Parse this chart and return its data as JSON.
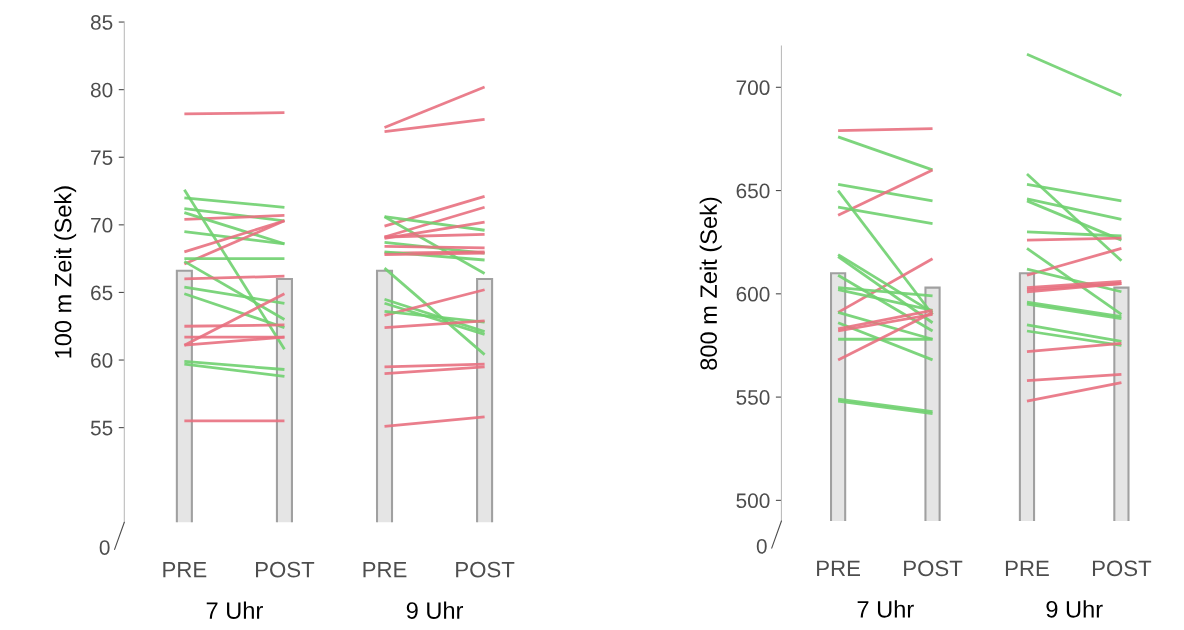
{
  "chart_data": [
    {
      "type": "bar",
      "categories": [
        "PRE",
        "POST",
        "PRE",
        "POST"
      ],
      "ylabel": "100 m Zeit (Sek)",
      "ylim": [
        48,
        85
      ],
      "yticks": [
        55,
        60,
        65,
        70,
        75,
        80,
        85
      ],
      "annotations": [
        "7 Uhr",
        "9 Uhr",
        "0"
      ],
      "grid": false,
      "series": [
        {
          "color": "#e5e5e5",
          "values": [
            66.6,
            66.0,
            66.6,
            66.0
          ]
        },
        {
          "type": "line",
          "color": "#e8707f",
          "values": [
            78.2,
            78.3,
            null,
            null
          ]
        },
        {
          "type": "line",
          "color": "#6fd06f",
          "values": [
            72.6,
            60.8,
            null,
            null
          ]
        },
        {
          "type": "line",
          "color": "#6fd06f",
          "values": [
            72.0,
            71.3,
            null,
            null
          ]
        },
        {
          "type": "line",
          "color": "#6fd06f",
          "values": [
            71.2,
            70.3,
            null,
            null
          ]
        },
        {
          "type": "line",
          "color": "#e8707f",
          "values": [
            70.4,
            70.7,
            null,
            null
          ]
        },
        {
          "type": "line",
          "color": "#6fd06f",
          "values": [
            70.9,
            68.6,
            null,
            null
          ]
        },
        {
          "type": "line",
          "color": "#6fd06f",
          "values": [
            69.5,
            68.6,
            null,
            null
          ]
        },
        {
          "type": "line",
          "color": "#e8707f",
          "values": [
            68.0,
            70.3,
            null,
            null
          ]
        },
        {
          "type": "line",
          "color": "#e8707f",
          "values": [
            67.1,
            70.3,
            null,
            null
          ]
        },
        {
          "type": "line",
          "color": "#6fd06f",
          "values": [
            67.5,
            67.5,
            null,
            null
          ]
        },
        {
          "type": "line",
          "color": "#6fd06f",
          "values": [
            67.3,
            63.0,
            null,
            null
          ]
        },
        {
          "type": "line",
          "color": "#e8707f",
          "values": [
            66.0,
            66.2,
            null,
            null
          ]
        },
        {
          "type": "line",
          "color": "#6fd06f",
          "values": [
            65.4,
            64.2,
            null,
            null
          ]
        },
        {
          "type": "line",
          "color": "#6fd06f",
          "values": [
            64.9,
            62.4,
            null,
            null
          ]
        },
        {
          "type": "line",
          "color": "#e8707f",
          "values": [
            62.5,
            62.6,
            null,
            null
          ]
        },
        {
          "type": "line",
          "color": "#e8707f",
          "values": [
            61.1,
            64.9,
            null,
            null
          ]
        },
        {
          "type": "line",
          "color": "#e8707f",
          "values": [
            61.7,
            61.7,
            null,
            null
          ]
        },
        {
          "type": "line",
          "color": "#e8707f",
          "values": [
            61.1,
            61.7,
            null,
            null
          ]
        },
        {
          "type": "line",
          "color": "#6fd06f",
          "values": [
            59.9,
            59.3,
            null,
            null
          ]
        },
        {
          "type": "line",
          "color": "#6fd06f",
          "values": [
            59.7,
            58.8,
            null,
            null
          ]
        },
        {
          "type": "line",
          "color": "#e8707f",
          "values": [
            55.5,
            55.5,
            null,
            null
          ]
        },
        {
          "type": "line",
          "color": "#e8707f",
          "values": [
            null,
            null,
            77.2,
            80.2
          ]
        },
        {
          "type": "line",
          "color": "#e8707f",
          "values": [
            null,
            null,
            76.9,
            77.8
          ]
        },
        {
          "type": "line",
          "color": "#e8707f",
          "values": [
            null,
            null,
            69.9,
            72.1
          ]
        },
        {
          "type": "line",
          "color": "#e8707f",
          "values": [
            null,
            null,
            69.1,
            71.3
          ]
        },
        {
          "type": "line",
          "color": "#6fd06f",
          "values": [
            null,
            null,
            70.6,
            69.6
          ]
        },
        {
          "type": "line",
          "color": "#6fd06f",
          "values": [
            null,
            null,
            70.6,
            66.4
          ]
        },
        {
          "type": "line",
          "color": "#e8707f",
          "values": [
            null,
            null,
            69.0,
            70.2
          ]
        },
        {
          "type": "line",
          "color": "#e8707f",
          "values": [
            null,
            null,
            69.1,
            69.3
          ]
        },
        {
          "type": "line",
          "color": "#6fd06f",
          "values": [
            null,
            null,
            68.7,
            67.9
          ]
        },
        {
          "type": "line",
          "color": "#e8707f",
          "values": [
            null,
            null,
            68.4,
            68.3
          ]
        },
        {
          "type": "line",
          "color": "#e8707f",
          "values": [
            null,
            null,
            67.9,
            68.0
          ]
        },
        {
          "type": "line",
          "color": "#6fd06f",
          "values": [
            null,
            null,
            68.0,
            67.4
          ]
        },
        {
          "type": "line",
          "color": "#e8707f",
          "values": [
            null,
            null,
            67.8,
            67.9
          ]
        },
        {
          "type": "line",
          "color": "#6fd06f",
          "values": [
            null,
            null,
            66.8,
            60.4
          ]
        },
        {
          "type": "line",
          "color": "#6fd06f",
          "values": [
            null,
            null,
            64.5,
            62.1
          ]
        },
        {
          "type": "line",
          "color": "#6fd06f",
          "values": [
            null,
            null,
            64.2,
            61.9
          ]
        },
        {
          "type": "line",
          "color": "#e8707f",
          "values": [
            null,
            null,
            63.3,
            65.2
          ]
        },
        {
          "type": "line",
          "color": "#6fd06f",
          "values": [
            null,
            null,
            63.6,
            62.8
          ]
        },
        {
          "type": "line",
          "color": "#e8707f",
          "values": [
            null,
            null,
            62.4,
            62.9
          ]
        },
        {
          "type": "line",
          "color": "#e8707f",
          "values": [
            null,
            null,
            59.5,
            59.7
          ]
        },
        {
          "type": "line",
          "color": "#e8707f",
          "values": [
            null,
            null,
            59.0,
            59.5
          ]
        },
        {
          "type": "line",
          "color": "#e8707f",
          "values": [
            null,
            null,
            55.1,
            55.8
          ]
        }
      ]
    },
    {
      "type": "bar",
      "categories": [
        "PRE",
        "POST",
        "PRE",
        "POST"
      ],
      "ylabel": "800 m Zeit (Sek)",
      "ylim": [
        490,
        720
      ],
      "yticks": [
        500,
        550,
        600,
        650,
        700
      ],
      "annotations": [
        "7 Uhr",
        "9 Uhr",
        "0"
      ],
      "grid": false,
      "series": [
        {
          "color": "#e5e5e5",
          "values": [
            610,
            603,
            610,
            603
          ]
        },
        {
          "type": "line",
          "color": "#e8707f",
          "values": [
            679,
            680,
            null,
            null
          ]
        },
        {
          "type": "line",
          "color": "#6fd06f",
          "values": [
            676,
            660,
            null,
            null
          ]
        },
        {
          "type": "line",
          "color": "#6fd06f",
          "values": [
            653,
            645,
            null,
            null
          ]
        },
        {
          "type": "line",
          "color": "#e8707f",
          "values": [
            638,
            660,
            null,
            null
          ]
        },
        {
          "type": "line",
          "color": "#6fd06f",
          "values": [
            650,
            590,
            null,
            null
          ]
        },
        {
          "type": "line",
          "color": "#6fd06f",
          "values": [
            642,
            634,
            null,
            null
          ]
        },
        {
          "type": "line",
          "color": "#e8707f",
          "values": [
            591,
            617,
            null,
            null
          ]
        },
        {
          "type": "line",
          "color": "#6fd06f",
          "values": [
            619,
            591,
            null,
            null
          ]
        },
        {
          "type": "line",
          "color": "#6fd06f",
          "values": [
            618,
            586,
            null,
            null
          ]
        },
        {
          "type": "line",
          "color": "#6fd06f",
          "values": [
            609,
            582,
            null,
            null
          ]
        },
        {
          "type": "line",
          "color": "#6fd06f",
          "values": [
            603,
            599,
            null,
            null
          ]
        },
        {
          "type": "line",
          "color": "#6fd06f",
          "values": [
            602,
            592,
            null,
            null
          ]
        },
        {
          "type": "line",
          "color": "#6fd06f",
          "values": [
            591,
            578,
            null,
            null
          ]
        },
        {
          "type": "line",
          "color": "#6fd06f",
          "values": [
            586,
            568,
            null,
            null
          ]
        },
        {
          "type": "line",
          "color": "#e8707f",
          "values": [
            583,
            592,
            null,
            null
          ]
        },
        {
          "type": "line",
          "color": "#e8707f",
          "values": [
            582,
            590,
            null,
            null
          ]
        },
        {
          "type": "line",
          "color": "#6fd06f",
          "values": [
            578,
            578,
            null,
            null
          ]
        },
        {
          "type": "line",
          "color": "#e8707f",
          "values": [
            568,
            591,
            null,
            null
          ]
        },
        {
          "type": "line",
          "color": "#6fd06f",
          "values": [
            549,
            543,
            null,
            null
          ]
        },
        {
          "type": "line",
          "color": "#6fd06f",
          "values": [
            548,
            542,
            null,
            null
          ]
        },
        {
          "type": "line",
          "color": "#6fd06f",
          "values": [
            null,
            null,
            716,
            696
          ]
        },
        {
          "type": "line",
          "color": "#6fd06f",
          "values": [
            null,
            null,
            658,
            616
          ]
        },
        {
          "type": "line",
          "color": "#6fd06f",
          "values": [
            null,
            null,
            653,
            645
          ]
        },
        {
          "type": "line",
          "color": "#6fd06f",
          "values": [
            null,
            null,
            646,
            636
          ]
        },
        {
          "type": "line",
          "color": "#6fd06f",
          "values": [
            null,
            null,
            645,
            626
          ]
        },
        {
          "type": "line",
          "color": "#6fd06f",
          "values": [
            null,
            null,
            630,
            628
          ]
        },
        {
          "type": "line",
          "color": "#e8707f",
          "values": [
            null,
            null,
            626,
            627
          ]
        },
        {
          "type": "line",
          "color": "#6fd06f",
          "values": [
            null,
            null,
            622,
            590
          ]
        },
        {
          "type": "line",
          "color": "#e8707f",
          "values": [
            null,
            null,
            609,
            622
          ]
        },
        {
          "type": "line",
          "color": "#6fd06f",
          "values": [
            null,
            null,
            612,
            601
          ]
        },
        {
          "type": "line",
          "color": "#e8707f",
          "values": [
            null,
            null,
            603,
            606
          ]
        },
        {
          "type": "line",
          "color": "#e8707f",
          "values": [
            null,
            null,
            601,
            605
          ]
        },
        {
          "type": "line",
          "color": "#e8707f",
          "values": [
            null,
            null,
            602,
            605
          ]
        },
        {
          "type": "line",
          "color": "#6fd06f",
          "values": [
            null,
            null,
            596,
            589
          ]
        },
        {
          "type": "line",
          "color": "#6fd06f",
          "values": [
            null,
            null,
            595,
            588
          ]
        },
        {
          "type": "line",
          "color": "#6fd06f",
          "values": [
            null,
            null,
            585,
            577
          ]
        },
        {
          "type": "line",
          "color": "#6fd06f",
          "values": [
            null,
            null,
            582,
            575
          ]
        },
        {
          "type": "line",
          "color": "#e8707f",
          "values": [
            null,
            null,
            572,
            576
          ]
        },
        {
          "type": "line",
          "color": "#e8707f",
          "values": [
            null,
            null,
            558,
            561
          ]
        },
        {
          "type": "line",
          "color": "#e8707f",
          "values": [
            null,
            null,
            548,
            557
          ]
        }
      ]
    }
  ]
}
